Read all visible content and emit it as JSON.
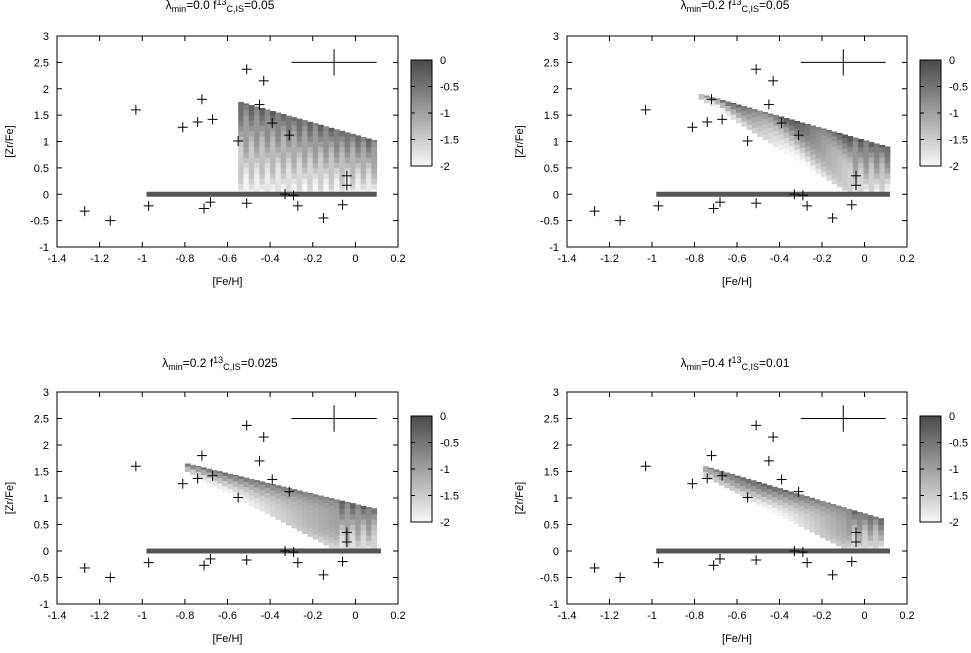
{
  "figure": {
    "colorbar_ticks": [
      "0",
      "-0.5",
      "-1",
      "-1.5",
      "-2"
    ],
    "colorbar_range": [
      -2,
      0
    ],
    "colors": {
      "dark": "#4a4a4a",
      "light": "#f7f7f7",
      "axis": "#000000"
    }
  },
  "chart_data": [
    {
      "type": "heatmap",
      "title": {
        "lambda_sym": "λ",
        "lambda_sub": "min",
        "lambda_val": "=0.0",
        "f_sym": "f",
        "f_sup": "13",
        "f_sub": "C,IS",
        "f_val": "=0.05"
      },
      "xlabel": "[Fe/H]",
      "ylabel": "[Zr/Fe]",
      "xlim": [
        -1.4,
        0.2
      ],
      "ylim": [
        -1,
        3
      ],
      "xticks": [
        "-1.4",
        "-1.2",
        "-1",
        "-0.8",
        "-0.6",
        "-0.4",
        "-0.2",
        "0",
        "0.2"
      ],
      "yticks": [
        "-1",
        "-0.5",
        "0",
        "0.5",
        "1",
        "1.5",
        "2",
        "2.5",
        "3"
      ],
      "grid": false,
      "error_bar": {
        "x": -0.1,
        "y": 2.5,
        "dx": 0.2,
        "dy": 0.25
      },
      "model_band": {
        "x_min": -0.55,
        "x_max": 0.1,
        "top_at_xmin": 1.75,
        "top_at_xmax": 1.0,
        "bottom": 0.0,
        "z_high": -0.3,
        "z_low": -1.9
      },
      "zero_line": {
        "x_from": -0.98,
        "x_to": 0.1,
        "y": 0
      },
      "stars": [
        [
          -1.27,
          -0.32
        ],
        [
          -1.15,
          -0.5
        ],
        [
          -1.03,
          1.6
        ],
        [
          -0.97,
          -0.22
        ],
        [
          -0.81,
          1.27
        ],
        [
          -0.74,
          1.37
        ],
        [
          -0.72,
          1.8
        ],
        [
          -0.71,
          -0.27
        ],
        [
          -0.68,
          -0.15
        ],
        [
          -0.67,
          1.42
        ],
        [
          -0.55,
          1.01
        ],
        [
          -0.51,
          2.37
        ],
        [
          -0.51,
          -0.17
        ],
        [
          -0.45,
          1.7
        ],
        [
          -0.43,
          2.15
        ],
        [
          -0.39,
          1.35
        ],
        [
          -0.33,
          0.0
        ],
        [
          -0.31,
          1.12
        ],
        [
          -0.29,
          -0.02
        ],
        [
          -0.27,
          -0.22
        ],
        [
          -0.15,
          -0.45
        ],
        [
          -0.06,
          -0.2
        ],
        [
          -0.04,
          0.35
        ],
        [
          -0.04,
          0.17
        ]
      ]
    },
    {
      "type": "heatmap",
      "title": {
        "lambda_sym": "λ",
        "lambda_sub": "min",
        "lambda_val": "=0.2",
        "f_sym": "f",
        "f_sup": "13",
        "f_sub": "C,IS",
        "f_val": "=0.05"
      },
      "xlabel": "[Fe/H]",
      "ylabel": "[Zr/Fe]",
      "xlim": [
        -1.4,
        0.2
      ],
      "ylim": [
        -1,
        3
      ],
      "xticks": [
        "-1.4",
        "-1.2",
        "-1",
        "-0.8",
        "-0.6",
        "-0.4",
        "-0.2",
        "0",
        "0.2"
      ],
      "yticks": [
        "-1",
        "-0.5",
        "0",
        "0.5",
        "1",
        "1.5",
        "2",
        "2.5",
        "3"
      ],
      "grid": false,
      "error_bar": {
        "x": -0.1,
        "y": 2.5,
        "dx": 0.2,
        "dy": 0.25
      },
      "model_band": {
        "x_min": -0.78,
        "x_max": 0.1,
        "top_at_xmin": 1.9,
        "top_at_xmax": 0.9,
        "bottom_at_xmin": 1.8,
        "bottom_at_xmax": 0.0,
        "z_high": -0.2,
        "z_low": -1.8
      },
      "zero_line": {
        "x_from": -0.98,
        "x_to": 0.12,
        "y": 0
      },
      "stars": [
        [
          -1.27,
          -0.32
        ],
        [
          -1.15,
          -0.5
        ],
        [
          -1.03,
          1.6
        ],
        [
          -0.97,
          -0.22
        ],
        [
          -0.81,
          1.27
        ],
        [
          -0.74,
          1.37
        ],
        [
          -0.72,
          1.8
        ],
        [
          -0.71,
          -0.27
        ],
        [
          -0.68,
          -0.15
        ],
        [
          -0.67,
          1.42
        ],
        [
          -0.55,
          1.01
        ],
        [
          -0.51,
          2.37
        ],
        [
          -0.51,
          -0.17
        ],
        [
          -0.45,
          1.7
        ],
        [
          -0.43,
          2.15
        ],
        [
          -0.39,
          1.35
        ],
        [
          -0.33,
          0.0
        ],
        [
          -0.31,
          1.12
        ],
        [
          -0.29,
          -0.02
        ],
        [
          -0.27,
          -0.22
        ],
        [
          -0.15,
          -0.45
        ],
        [
          -0.06,
          -0.2
        ],
        [
          -0.04,
          0.35
        ],
        [
          -0.04,
          0.17
        ]
      ]
    },
    {
      "type": "heatmap",
      "title": {
        "lambda_sym": "λ",
        "lambda_sub": "min",
        "lambda_val": "=0.2",
        "f_sym": "f",
        "f_sup": "13",
        "f_sub": "C,IS",
        "f_val": "=0.025"
      },
      "xlabel": "[Fe/H]",
      "ylabel": "[Zr/Fe]",
      "xlim": [
        -1.4,
        0.2
      ],
      "ylim": [
        -1,
        3
      ],
      "xticks": [
        "-1.4",
        "-1.2",
        "-1",
        "-0.8",
        "-0.6",
        "-0.4",
        "-0.2",
        "0",
        "0.2"
      ],
      "yticks": [
        "-1",
        "-0.5",
        "0",
        "0.5",
        "1",
        "1.5",
        "2",
        "2.5",
        "3"
      ],
      "grid": false,
      "error_bar": {
        "x": -0.1,
        "y": 2.5,
        "dx": 0.2,
        "dy": 0.25
      },
      "model_band": {
        "x_min": -0.8,
        "x_max": 0.08,
        "top_at_xmin": 1.65,
        "top_at_xmax": 0.8,
        "bottom_at_xmin": 1.5,
        "bottom_at_xmax": 0.0,
        "z_high": -0.3,
        "z_low": -1.7
      },
      "zero_line": {
        "x_from": -0.98,
        "x_to": 0.12,
        "y": 0
      },
      "stars": [
        [
          -1.27,
          -0.32
        ],
        [
          -1.15,
          -0.5
        ],
        [
          -1.03,
          1.6
        ],
        [
          -0.97,
          -0.22
        ],
        [
          -0.81,
          1.27
        ],
        [
          -0.74,
          1.37
        ],
        [
          -0.72,
          1.8
        ],
        [
          -0.71,
          -0.27
        ],
        [
          -0.68,
          -0.15
        ],
        [
          -0.67,
          1.42
        ],
        [
          -0.55,
          1.01
        ],
        [
          -0.51,
          2.37
        ],
        [
          -0.51,
          -0.17
        ],
        [
          -0.45,
          1.7
        ],
        [
          -0.43,
          2.15
        ],
        [
          -0.39,
          1.35
        ],
        [
          -0.33,
          0.0
        ],
        [
          -0.31,
          1.12
        ],
        [
          -0.29,
          -0.02
        ],
        [
          -0.27,
          -0.22
        ],
        [
          -0.15,
          -0.45
        ],
        [
          -0.06,
          -0.2
        ],
        [
          -0.04,
          0.35
        ],
        [
          -0.04,
          0.17
        ]
      ]
    },
    {
      "type": "heatmap",
      "title": {
        "lambda_sym": "λ",
        "lambda_sub": "min",
        "lambda_val": "=0.4",
        "f_sym": "f",
        "f_sup": "13",
        "f_sub": "C,IS",
        "f_val": "=0.01"
      },
      "xlabel": "[Fe/H]",
      "ylabel": "[Zr/Fe]",
      "xlim": [
        -1.4,
        0.2
      ],
      "ylim": [
        -1,
        3
      ],
      "xticks": [
        "-1.4",
        "-1.2",
        "-1",
        "-0.8",
        "-0.6",
        "-0.4",
        "-0.2",
        "0",
        "0.2"
      ],
      "yticks": [
        "-1",
        "-0.5",
        "0",
        "0.5",
        "1",
        "1.5",
        "2",
        "2.5",
        "3"
      ],
      "grid": false,
      "error_bar": {
        "x": -0.1,
        "y": 2.5,
        "dx": 0.2,
        "dy": 0.25
      },
      "model_band": {
        "x_min": -0.76,
        "x_max": 0.08,
        "top_at_xmin": 1.6,
        "top_at_xmax": 0.6,
        "bottom_at_xmin": 1.4,
        "bottom_at_xmax": 0.0,
        "z_high": -0.3,
        "z_low": -1.7
      },
      "zero_line": {
        "x_from": -0.98,
        "x_to": 0.12,
        "y": 0
      },
      "stars": [
        [
          -1.27,
          -0.32
        ],
        [
          -1.15,
          -0.5
        ],
        [
          -1.03,
          1.6
        ],
        [
          -0.97,
          -0.22
        ],
        [
          -0.81,
          1.27
        ],
        [
          -0.74,
          1.37
        ],
        [
          -0.72,
          1.8
        ],
        [
          -0.71,
          -0.27
        ],
        [
          -0.68,
          -0.15
        ],
        [
          -0.67,
          1.42
        ],
        [
          -0.55,
          1.01
        ],
        [
          -0.51,
          2.37
        ],
        [
          -0.51,
          -0.17
        ],
        [
          -0.45,
          1.7
        ],
        [
          -0.43,
          2.15
        ],
        [
          -0.39,
          1.35
        ],
        [
          -0.33,
          0.0
        ],
        [
          -0.31,
          1.12
        ],
        [
          -0.29,
          -0.02
        ],
        [
          -0.27,
          -0.22
        ],
        [
          -0.15,
          -0.45
        ],
        [
          -0.06,
          -0.2
        ],
        [
          -0.04,
          0.35
        ],
        [
          -0.04,
          0.17
        ]
      ]
    }
  ]
}
